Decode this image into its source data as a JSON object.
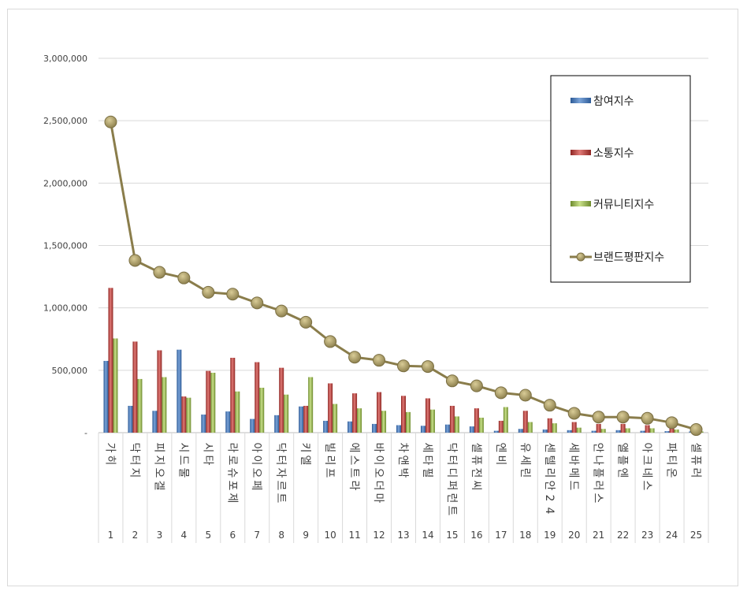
{
  "chart_data": {
    "type": "bar",
    "ylim": [
      0,
      3000000
    ],
    "y_ticks": [
      0,
      500000,
      1000000,
      1500000,
      2000000,
      2500000,
      3000000
    ],
    "y_tick_labels": [
      "-",
      "500,000",
      "1,000,000",
      "1,500,000",
      "2,000,000",
      "2,500,000",
      "3,000,000"
    ],
    "grid": true,
    "legend_position": "right",
    "ranks": [
      "1",
      "2",
      "3",
      "4",
      "5",
      "6",
      "7",
      "8",
      "9",
      "10",
      "11",
      "12",
      "13",
      "14",
      "15",
      "16",
      "17",
      "18",
      "19",
      "20",
      "21",
      "22",
      "23",
      "24",
      "25"
    ],
    "categories": [
      "가히",
      "닥터지",
      "피지오겔",
      "시드물",
      "시타",
      "라로슈포제",
      "아이오페",
      "닥터자르트",
      "키엘",
      "빌리프",
      "에스트라",
      "바이오더마",
      "차앤박",
      "세타필",
      "닥터디퍼런트",
      "셀퓨전씨",
      "엔비",
      "유세린",
      "센텔리안24",
      "세바메드",
      "안나플러스",
      "앨플엔",
      "아크네스",
      "파티온",
      "셀퓨러"
    ],
    "series": [
      {
        "name": "참여지수",
        "kind": "bar",
        "color": "#4f81bd",
        "values": [
          575000,
          215000,
          175000,
          665000,
          145000,
          170000,
          110000,
          140000,
          210000,
          95000,
          90000,
          70000,
          60000,
          55000,
          65000,
          50000,
          15000,
          30000,
          25000,
          20000,
          15000,
          20000,
          15000,
          12000,
          10000
        ]
      },
      {
        "name": "소통지수",
        "kind": "bar",
        "color": "#c0504d",
        "values": [
          1160000,
          730000,
          660000,
          290000,
          495000,
          600000,
          565000,
          520000,
          215000,
          395000,
          315000,
          325000,
          295000,
          275000,
          215000,
          195000,
          95000,
          175000,
          115000,
          85000,
          70000,
          70000,
          60000,
          45000,
          5000
        ]
      },
      {
        "name": "커뮤니티지수",
        "kind": "bar",
        "color": "#9bbb59",
        "values": [
          755000,
          430000,
          445000,
          280000,
          480000,
          330000,
          360000,
          305000,
          445000,
          230000,
          195000,
          175000,
          165000,
          185000,
          130000,
          120000,
          205000,
          85000,
          75000,
          40000,
          30000,
          35000,
          35000,
          25000,
          10000
        ]
      },
      {
        "name": "브랜드평판지수",
        "kind": "line",
        "color": "#8a7d4b",
        "marker_color": "#b3a36a",
        "values": [
          2490000,
          1380000,
          1285000,
          1240000,
          1125000,
          1110000,
          1040000,
          975000,
          885000,
          730000,
          605000,
          580000,
          535000,
          530000,
          415000,
          375000,
          320000,
          300000,
          220000,
          155000,
          125000,
          125000,
          115000,
          80000,
          25000
        ]
      }
    ]
  }
}
